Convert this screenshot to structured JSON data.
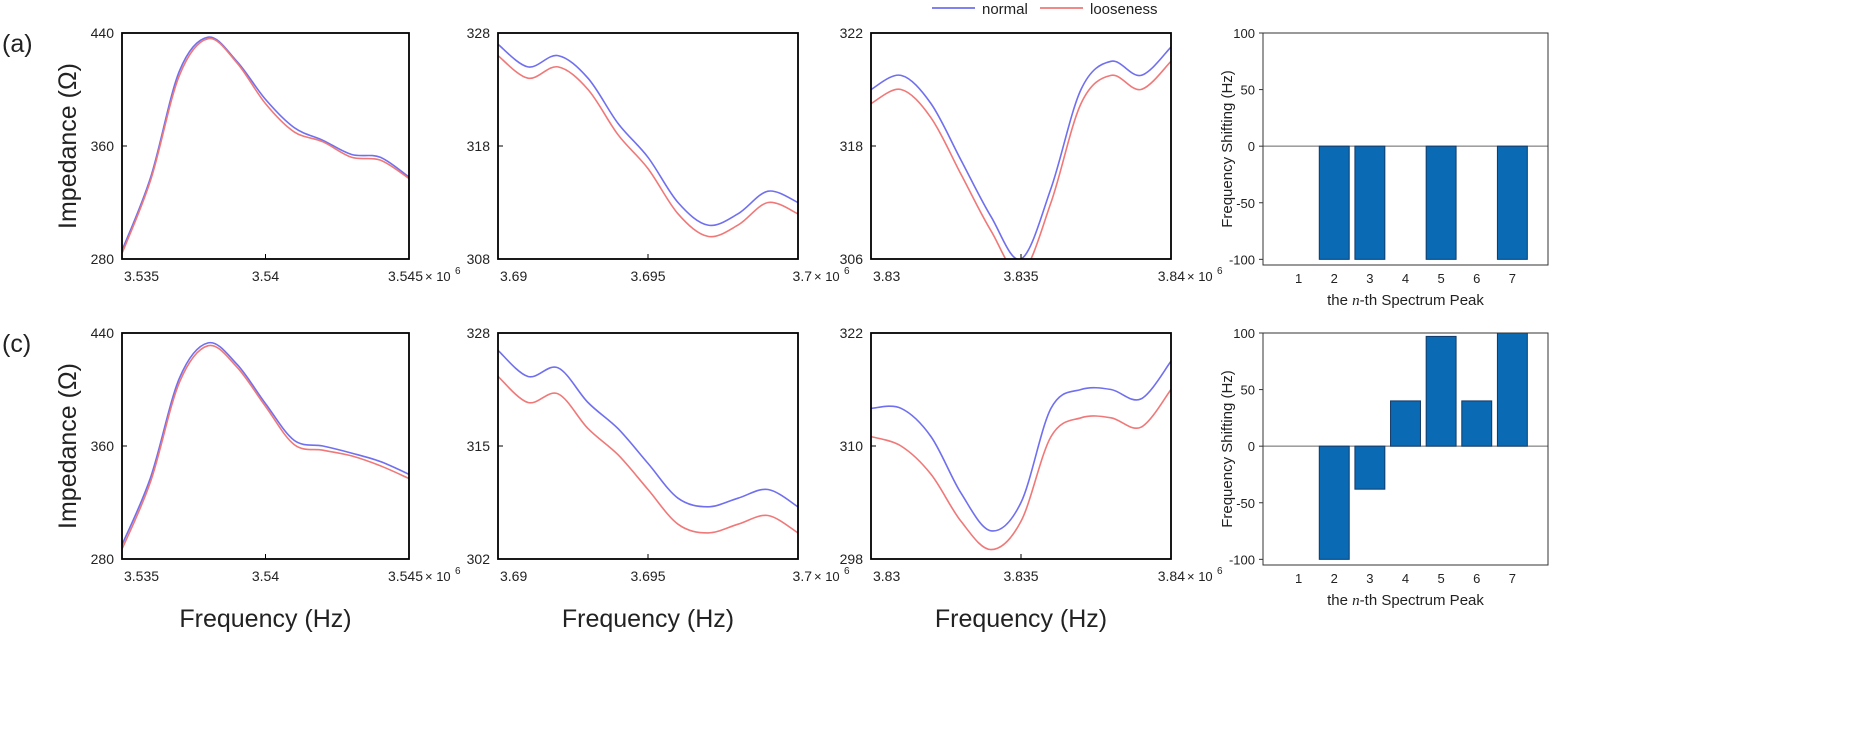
{
  "figure": {
    "row_labels": [
      "(a)",
      "(c)"
    ],
    "y_axis_label": "Impedance (Ω)",
    "x_axis_label": "Frequency (Hz)",
    "bar_y_label": "Frequency Shifting (Hz)",
    "bar_x_label_pre": "the ",
    "bar_x_label_n": "n",
    "bar_x_label_post": "-th Spectrum Peak",
    "exp_label": "× 10",
    "exp_power": "6"
  },
  "legend": {
    "normal": "normal",
    "looseness": "looseness"
  },
  "colors": {
    "normal": "#6f6ff0",
    "looseness": "#f07878",
    "bar": "#0a6ab4",
    "bar_stroke": "#123a66"
  },
  "chart_data": [
    {
      "id": "a1",
      "type": "line",
      "xlim": [
        3.535,
        3.545
      ],
      "ylim": [
        280,
        440
      ],
      "xticks": [
        "3.535",
        "3.54",
        "3.545"
      ],
      "yticks": [
        "280",
        "360",
        "440"
      ],
      "x": [
        3.535,
        3.536,
        3.537,
        3.538,
        3.539,
        3.54,
        3.541,
        3.542,
        3.543,
        3.544,
        3.545
      ],
      "series": [
        {
          "name": "normal",
          "values": [
            286,
            338,
            413,
            437,
            420,
            393,
            373,
            364,
            354,
            352,
            338
          ]
        },
        {
          "name": "looseness",
          "values": [
            284,
            336,
            410,
            436,
            419,
            390,
            370,
            363,
            352,
            350,
            337
          ]
        }
      ]
    },
    {
      "id": "a2",
      "type": "line",
      "xlim": [
        3.69,
        3.7
      ],
      "ylim": [
        308,
        328
      ],
      "xticks": [
        "3.69",
        "3.695",
        "3.7"
      ],
      "yticks": [
        "308",
        "318",
        "328"
      ],
      "x": [
        3.69,
        3.691,
        3.692,
        3.693,
        3.694,
        3.695,
        3.696,
        3.697,
        3.698,
        3.699,
        3.7
      ],
      "series": [
        {
          "name": "normal",
          "values": [
            327,
            325,
            326,
            324,
            320,
            317,
            313,
            311,
            312,
            314,
            313
          ]
        },
        {
          "name": "looseness",
          "values": [
            326,
            324,
            325,
            323,
            319,
            316,
            312,
            310,
            311,
            313,
            312
          ]
        }
      ]
    },
    {
      "id": "a3",
      "type": "line",
      "xlim": [
        3.83,
        3.84
      ],
      "ylim": [
        306,
        322
      ],
      "xticks": [
        "3.83",
        "3.835",
        "3.84"
      ],
      "yticks": [
        "306",
        "318",
        "322"
      ],
      "x": [
        3.83,
        3.831,
        3.832,
        3.833,
        3.834,
        3.835,
        3.836,
        3.837,
        3.838,
        3.839,
        3.84
      ],
      "series": [
        {
          "name": "normal",
          "values": [
            318,
            319,
            317,
            313,
            309,
            306,
            311,
            318,
            320,
            319,
            321
          ]
        },
        {
          "name": "looseness",
          "values": [
            317,
            318,
            316,
            312,
            308,
            305,
            310,
            317,
            319,
            318,
            320
          ]
        }
      ]
    },
    {
      "id": "b1",
      "type": "bar",
      "ylim": [
        -105,
        100
      ],
      "yticks": [
        "-100",
        "-50",
        "0",
        "50",
        "100"
      ],
      "categories": [
        "1",
        "2",
        "3",
        "4",
        "5",
        "6",
        "7"
      ],
      "values": [
        0,
        -100,
        -100,
        0,
        -100,
        0,
        -100
      ]
    },
    {
      "id": "c1",
      "type": "line",
      "xlim": [
        3.535,
        3.545
      ],
      "ylim": [
        280,
        440
      ],
      "xticks": [
        "3.535",
        "3.54",
        "3.545"
      ],
      "yticks": [
        "280",
        "360",
        "440"
      ],
      "x": [
        3.535,
        3.536,
        3.537,
        3.538,
        3.539,
        3.54,
        3.541,
        3.542,
        3.543,
        3.544,
        3.545
      ],
      "series": [
        {
          "name": "normal",
          "values": [
            290,
            338,
            408,
            433,
            418,
            390,
            364,
            360,
            355,
            349,
            340
          ]
        },
        {
          "name": "looseness",
          "values": [
            287,
            335,
            405,
            431,
            416,
            388,
            361,
            357,
            353,
            346,
            337
          ]
        }
      ]
    },
    {
      "id": "c2",
      "type": "line",
      "xlim": [
        3.69,
        3.7
      ],
      "ylim": [
        302,
        328
      ],
      "xticks": [
        "3.69",
        "3.695",
        "3.7"
      ],
      "yticks": [
        "302",
        "315",
        "328"
      ],
      "x": [
        3.69,
        3.691,
        3.692,
        3.693,
        3.694,
        3.695,
        3.696,
        3.697,
        3.698,
        3.699,
        3.7
      ],
      "series": [
        {
          "name": "normal",
          "values": [
            326,
            323,
            324,
            320,
            317,
            313,
            309,
            308,
            309,
            310,
            308
          ]
        },
        {
          "name": "looseness",
          "values": [
            323,
            320,
            321,
            317,
            314,
            310,
            306,
            305,
            306,
            307,
            305
          ]
        }
      ]
    },
    {
      "id": "c3",
      "type": "line",
      "xlim": [
        3.83,
        3.84
      ],
      "ylim": [
        298,
        322
      ],
      "xticks": [
        "3.83",
        "3.835",
        "3.84"
      ],
      "yticks": [
        "298",
        "310",
        "322"
      ],
      "x": [
        3.83,
        3.831,
        3.832,
        3.833,
        3.834,
        3.835,
        3.836,
        3.837,
        3.838,
        3.839,
        3.84
      ],
      "series": [
        {
          "name": "normal",
          "values": [
            314,
            314,
            311,
            305,
            301,
            304,
            314,
            316,
            316,
            315,
            319
          ]
        },
        {
          "name": "looseness",
          "values": [
            311,
            310,
            307,
            302,
            299,
            302,
            311,
            313,
            313,
            312,
            316
          ]
        }
      ]
    },
    {
      "id": "d1",
      "type": "bar",
      "ylim": [
        -105,
        100
      ],
      "yticks": [
        "-100",
        "-50",
        "0",
        "50",
        "100"
      ],
      "categories": [
        "1",
        "2",
        "3",
        "4",
        "5",
        "6",
        "7"
      ],
      "values": [
        0,
        -100,
        -38,
        40,
        97,
        40,
        100
      ]
    }
  ]
}
